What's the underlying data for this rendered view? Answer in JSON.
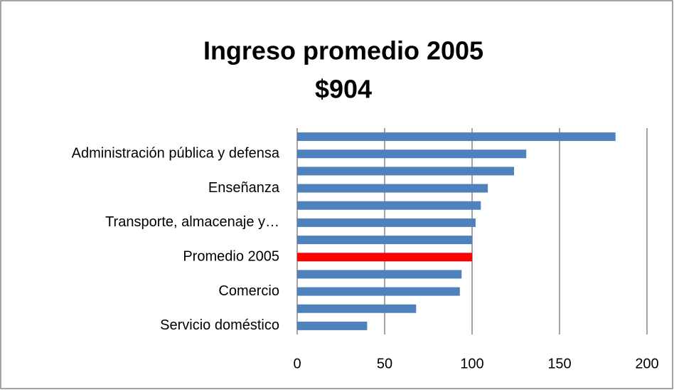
{
  "chart_data": {
    "type": "bar",
    "orientation": "horizontal",
    "title": "Ingreso promedio 2005",
    "subtitle": "$904",
    "categories": [
      null,
      "Administración pública y defensa",
      null,
      "Enseñanza",
      null,
      "Transporte, almacenaje y…",
      null,
      "Promedio 2005",
      null,
      "Comercio",
      null,
      "Servicio doméstico"
    ],
    "values": [
      182,
      131,
      124,
      109,
      105,
      102,
      100,
      100,
      94,
      93,
      68,
      40
    ],
    "colors": [
      "#4f81bd",
      "#4f81bd",
      "#4f81bd",
      "#4f81bd",
      "#4f81bd",
      "#4f81bd",
      "#4f81bd",
      "#ff0000",
      "#4f81bd",
      "#4f81bd",
      "#4f81bd",
      "#4f81bd"
    ],
    "xlim": [
      0,
      200
    ],
    "xticks": [
      0,
      50,
      100,
      150,
      200
    ],
    "grid": true
  }
}
